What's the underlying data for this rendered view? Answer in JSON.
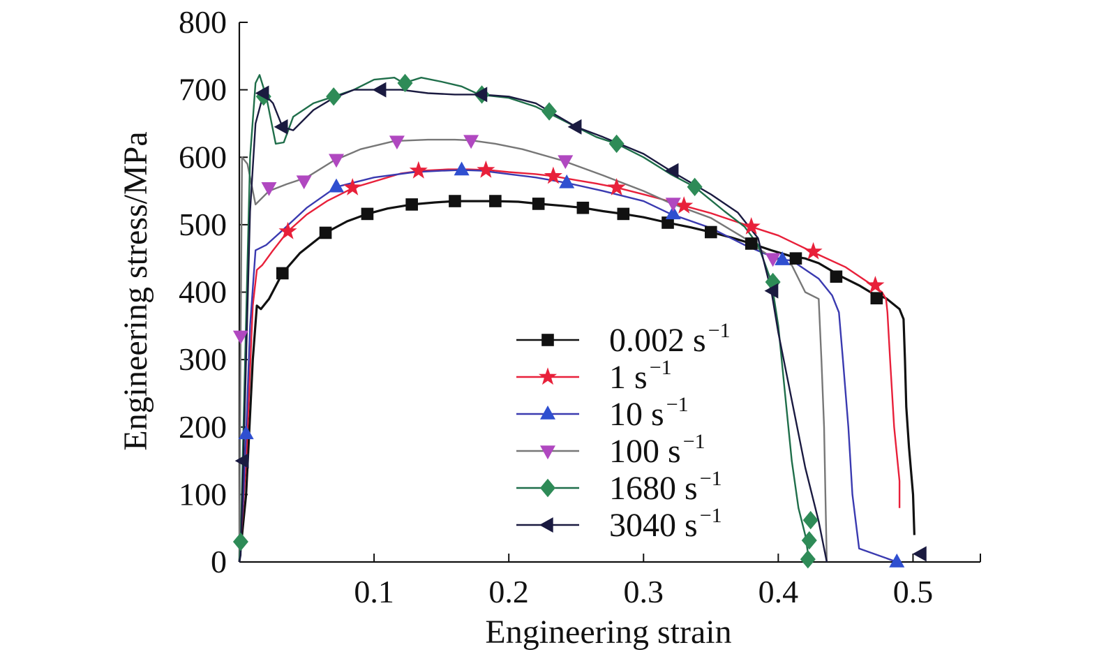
{
  "chart_data": {
    "type": "line",
    "title": "",
    "xlabel": "Engineering strain",
    "ylabel": "Engineering stress/MPa",
    "xlim": [
      0,
      0.55
    ],
    "ylim": [
      0,
      800
    ],
    "xticks": [
      0.1,
      0.2,
      0.3,
      0.4,
      0.5
    ],
    "xtick_labels": [
      "0.1",
      "0.2",
      "0.3",
      "0.4",
      "0.5"
    ],
    "yticks": [
      0,
      100,
      200,
      300,
      400,
      500,
      600,
      700,
      800
    ],
    "ytick_labels": [
      "0",
      "100",
      "200",
      "300",
      "400",
      "500",
      "600",
      "700",
      "800"
    ],
    "grid": false,
    "legend_position": "center-right",
    "series": [
      {
        "name": "0.002 s",
        "sup": "−1",
        "color": "#111111",
        "marker": "square",
        "marker_color": "#111111",
        "points": [
          [
            0,
            0
          ],
          [
            0.005,
            100
          ],
          [
            0.01,
            300
          ],
          [
            0.013,
            380
          ],
          [
            0.016,
            375
          ],
          [
            0.022,
            390
          ],
          [
            0.032,
            428
          ],
          [
            0.045,
            458
          ],
          [
            0.064,
            488
          ],
          [
            0.08,
            505
          ],
          [
            0.095,
            516
          ],
          [
            0.11,
            524
          ],
          [
            0.128,
            530
          ],
          [
            0.145,
            533
          ],
          [
            0.16,
            535
          ],
          [
            0.175,
            535
          ],
          [
            0.19,
            535
          ],
          [
            0.207,
            534
          ],
          [
            0.222,
            531
          ],
          [
            0.24,
            528
          ],
          [
            0.255,
            525
          ],
          [
            0.27,
            520
          ],
          [
            0.285,
            516
          ],
          [
            0.3,
            511
          ],
          [
            0.318,
            503
          ],
          [
            0.335,
            496
          ],
          [
            0.35,
            489
          ],
          [
            0.365,
            481
          ],
          [
            0.38,
            472
          ],
          [
            0.395,
            462
          ],
          [
            0.41,
            453
          ],
          [
            0.42,
            450
          ],
          [
            0.43,
            443
          ],
          [
            0.447,
            423
          ],
          [
            0.46,
            410
          ],
          [
            0.47,
            398
          ],
          [
            0.48,
            391
          ],
          [
            0.49,
            375
          ],
          [
            0.493,
            360
          ],
          [
            0.494,
            300
          ],
          [
            0.495,
            230
          ],
          [
            0.497,
            170
          ],
          [
            0.5,
            100
          ],
          [
            0.501,
            40
          ]
        ],
        "markers": [
          [
            0.032,
            428
          ],
          [
            0.064,
            488
          ],
          [
            0.095,
            516
          ],
          [
            0.128,
            530
          ],
          [
            0.16,
            535
          ],
          [
            0.19,
            535
          ],
          [
            0.222,
            531
          ],
          [
            0.255,
            525
          ],
          [
            0.285,
            516
          ],
          [
            0.318,
            503
          ],
          [
            0.35,
            489
          ],
          [
            0.38,
            472
          ],
          [
            0.413,
            450
          ],
          [
            0.443,
            423
          ],
          [
            0.473,
            391
          ]
        ]
      },
      {
        "name": "1 s",
        "sup": "−1",
        "color": "#e8203a",
        "marker": "star",
        "marker_color": "#e8203a",
        "points": [
          [
            0,
            0
          ],
          [
            0.005,
            150
          ],
          [
            0.01,
            380
          ],
          [
            0.013,
            433
          ],
          [
            0.017,
            440
          ],
          [
            0.025,
            462
          ],
          [
            0.036,
            490
          ],
          [
            0.05,
            515
          ],
          [
            0.065,
            535
          ],
          [
            0.085,
            555
          ],
          [
            0.105,
            567
          ],
          [
            0.12,
            576
          ],
          [
            0.135,
            580
          ],
          [
            0.155,
            582
          ],
          [
            0.17,
            582
          ],
          [
            0.185,
            581
          ],
          [
            0.2,
            578
          ],
          [
            0.22,
            575
          ],
          [
            0.233,
            572
          ],
          [
            0.25,
            566
          ],
          [
            0.265,
            561
          ],
          [
            0.28,
            555
          ],
          [
            0.3,
            545
          ],
          [
            0.315,
            537
          ],
          [
            0.33,
            528
          ],
          [
            0.35,
            517
          ],
          [
            0.365,
            507
          ],
          [
            0.38,
            497
          ],
          [
            0.4,
            484
          ],
          [
            0.425,
            460
          ],
          [
            0.45,
            437
          ],
          [
            0.47,
            410
          ],
          [
            0.477,
            400
          ],
          [
            0.48,
            390
          ],
          [
            0.481,
            370
          ],
          [
            0.483,
            300
          ],
          [
            0.486,
            200
          ],
          [
            0.49,
            120
          ],
          [
            0.49,
            80
          ]
        ],
        "markers": [
          [
            0.036,
            490
          ],
          [
            0.084,
            555
          ],
          [
            0.133,
            580
          ],
          [
            0.183,
            581
          ],
          [
            0.233,
            572
          ],
          [
            0.28,
            555
          ],
          [
            0.33,
            528
          ],
          [
            0.38,
            497
          ],
          [
            0.426,
            460
          ],
          [
            0.472,
            410
          ]
        ]
      },
      {
        "name": "10 s",
        "sup": "−1",
        "color": "#3a3ab0",
        "marker": "triangle-up",
        "marker_color": "#2f4fd0",
        "points": [
          [
            0,
            0
          ],
          [
            0.003,
            100
          ],
          [
            0.005,
            190
          ],
          [
            0.008,
            350
          ],
          [
            0.012,
            462
          ],
          [
            0.02,
            470
          ],
          [
            0.03,
            488
          ],
          [
            0.05,
            525
          ],
          [
            0.072,
            556
          ],
          [
            0.1,
            570
          ],
          [
            0.13,
            578
          ],
          [
            0.15,
            580
          ],
          [
            0.165,
            581
          ],
          [
            0.18,
            580
          ],
          [
            0.2,
            575
          ],
          [
            0.22,
            570
          ],
          [
            0.243,
            562
          ],
          [
            0.27,
            550
          ],
          [
            0.3,
            535
          ],
          [
            0.32,
            516
          ],
          [
            0.35,
            495
          ],
          [
            0.375,
            470
          ],
          [
            0.39,
            457
          ],
          [
            0.403,
            448
          ],
          [
            0.41,
            447
          ],
          [
            0.43,
            420
          ],
          [
            0.44,
            395
          ],
          [
            0.445,
            370
          ],
          [
            0.448,
            300
          ],
          [
            0.452,
            200
          ],
          [
            0.455,
            100
          ],
          [
            0.46,
            20
          ],
          [
            0.488,
            0
          ]
        ],
        "markers": [
          [
            0.005,
            190
          ],
          [
            0.072,
            556
          ],
          [
            0.165,
            581
          ],
          [
            0.243,
            562
          ],
          [
            0.322,
            516
          ],
          [
            0.403,
            448
          ],
          [
            0.488,
            0
          ]
        ]
      },
      {
        "name": "100 s",
        "sup": "−1",
        "color": "#777777",
        "marker": "triangle-down",
        "marker_color": "#b048c0",
        "points": [
          [
            0,
            0
          ],
          [
            0.001,
            335
          ],
          [
            0.002,
            600
          ],
          [
            0.006,
            590
          ],
          [
            0.012,
            530
          ],
          [
            0.022,
            550
          ],
          [
            0.035,
            560
          ],
          [
            0.05,
            570
          ],
          [
            0.07,
            595
          ],
          [
            0.09,
            612
          ],
          [
            0.115,
            624
          ],
          [
            0.14,
            626
          ],
          [
            0.16,
            626
          ],
          [
            0.172,
            625
          ],
          [
            0.19,
            620
          ],
          [
            0.21,
            612
          ],
          [
            0.24,
            595
          ],
          [
            0.27,
            573
          ],
          [
            0.3,
            550
          ],
          [
            0.32,
            532
          ],
          [
            0.35,
            510
          ],
          [
            0.375,
            480
          ],
          [
            0.385,
            465
          ],
          [
            0.395,
            452
          ],
          [
            0.41,
            440
          ],
          [
            0.42,
            400
          ],
          [
            0.43,
            390
          ],
          [
            0.432,
            300
          ],
          [
            0.434,
            200
          ],
          [
            0.435,
            100
          ],
          [
            0.436,
            0
          ]
        ],
        "markers": [
          [
            0.001,
            335
          ],
          [
            0.022,
            555
          ],
          [
            0.048,
            565
          ],
          [
            0.072,
            597
          ],
          [
            0.117,
            624
          ],
          [
            0.172,
            625
          ],
          [
            0.242,
            595
          ],
          [
            0.322,
            532
          ],
          [
            0.396,
            450
          ]
        ]
      },
      {
        "name": "1680 s",
        "sup": "−1",
        "color": "#1f6e4a",
        "marker": "diamond",
        "marker_color": "#2e8b57",
        "points": [
          [
            0,
            0
          ],
          [
            0.001,
            30
          ],
          [
            0.008,
            600
          ],
          [
            0.012,
            710
          ],
          [
            0.015,
            722
          ],
          [
            0.02,
            690
          ],
          [
            0.027,
            620
          ],
          [
            0.033,
            622
          ],
          [
            0.04,
            660
          ],
          [
            0.055,
            680
          ],
          [
            0.07,
            690
          ],
          [
            0.085,
            700
          ],
          [
            0.1,
            715
          ],
          [
            0.115,
            718
          ],
          [
            0.122,
            710
          ],
          [
            0.135,
            718
          ],
          [
            0.15,
            712
          ],
          [
            0.165,
            705
          ],
          [
            0.178,
            693
          ],
          [
            0.2,
            688
          ],
          [
            0.22,
            675
          ],
          [
            0.235,
            660
          ],
          [
            0.25,
            645
          ],
          [
            0.265,
            630
          ],
          [
            0.28,
            620
          ],
          [
            0.3,
            600
          ],
          [
            0.32,
            575
          ],
          [
            0.338,
            556
          ],
          [
            0.36,
            520
          ],
          [
            0.375,
            497
          ],
          [
            0.385,
            470
          ],
          [
            0.395,
            415
          ],
          [
            0.4,
            350
          ],
          [
            0.405,
            250
          ],
          [
            0.41,
            150
          ],
          [
            0.415,
            80
          ],
          [
            0.42,
            40
          ],
          [
            0.423,
            0
          ]
        ],
        "markers": [
          [
            0.001,
            30
          ],
          [
            0.018,
            690
          ],
          [
            0.07,
            690
          ],
          [
            0.123,
            710
          ],
          [
            0.18,
            693
          ],
          [
            0.23,
            668
          ],
          [
            0.28,
            620
          ],
          [
            0.338,
            556
          ],
          [
            0.396,
            415
          ],
          [
            0.424,
            62
          ],
          [
            0.423,
            32
          ],
          [
            0.422,
            4
          ]
        ]
      },
      {
        "name": "3040 s",
        "sup": "−1",
        "color": "#1a1a40",
        "marker": "triangle-left",
        "marker_color": "#1a1a40",
        "points": [
          [
            0,
            0
          ],
          [
            0.001,
            10
          ],
          [
            0.003,
            150
          ],
          [
            0.008,
            520
          ],
          [
            0.012,
            650
          ],
          [
            0.018,
            695
          ],
          [
            0.025,
            680
          ],
          [
            0.032,
            645
          ],
          [
            0.04,
            640
          ],
          [
            0.055,
            670
          ],
          [
            0.07,
            688
          ],
          [
            0.085,
            700
          ],
          [
            0.1,
            700
          ],
          [
            0.12,
            700
          ],
          [
            0.14,
            695
          ],
          [
            0.16,
            693
          ],
          [
            0.18,
            693
          ],
          [
            0.2,
            690
          ],
          [
            0.22,
            680
          ],
          [
            0.25,
            645
          ],
          [
            0.27,
            630
          ],
          [
            0.3,
            605
          ],
          [
            0.32,
            580
          ],
          [
            0.35,
            545
          ],
          [
            0.37,
            518
          ],
          [
            0.385,
            480
          ],
          [
            0.395,
            400
          ],
          [
            0.4,
            340
          ],
          [
            0.41,
            240
          ],
          [
            0.42,
            140
          ],
          [
            0.43,
            60
          ],
          [
            0.436,
            0
          ]
        ],
        "markers": [
          [
            0.003,
            150
          ],
          [
            0.018,
            695
          ],
          [
            0.032,
            645
          ],
          [
            0.105,
            700
          ],
          [
            0.18,
            693
          ],
          [
            0.25,
            645
          ],
          [
            0.322,
            580
          ],
          [
            0.396,
            402
          ],
          [
            0.506,
            12
          ]
        ]
      }
    ]
  }
}
